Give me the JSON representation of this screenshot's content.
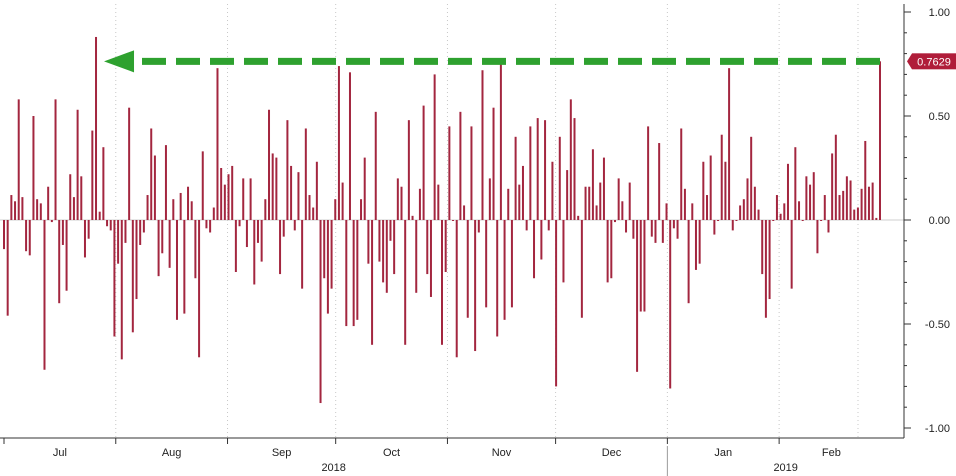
{
  "chart_data": {
    "type": "bar",
    "title": "",
    "xlabel": "",
    "ylabel": "",
    "ylim": [
      -1.04,
      1.04
    ],
    "y_ticks": [
      -1.0,
      -0.5,
      0.0,
      0.5,
      1.0
    ],
    "y_tick_labels": [
      "-1.00",
      "-0.50",
      "0.00",
      "0.50",
      "1.00"
    ],
    "grid": "vertical dotted at month starts",
    "months": [
      {
        "label": "Jul",
        "start_day": 0
      },
      {
        "label": "Aug",
        "start_day": 31
      },
      {
        "label": "Sep",
        "start_day": 62
      },
      {
        "label": "Oct",
        "start_day": 92
      },
      {
        "label": "Nov",
        "start_day": 123
      },
      {
        "label": "Dec",
        "start_day": 153
      },
      {
        "label": "Jan",
        "start_day": 184
      },
      {
        "label": "Feb",
        "start_day": 215
      }
    ],
    "years": [
      {
        "label": "2018",
        "start_day": 0
      },
      {
        "label": "2019",
        "start_day": 184
      }
    ],
    "series": [
      {
        "values": [
          -0.14,
          -0.46,
          0.12,
          0.09,
          0.58,
          0.11,
          -0.15,
          -0.17,
          0.5,
          0.1,
          0.08,
          -0.72,
          0.16,
          -0.01,
          0.58,
          -0.4,
          -0.12,
          -0.34,
          0.22,
          0.11,
          0.53,
          0.21,
          -0.18,
          -0.09,
          0.43,
          0.88,
          0.04,
          0.35,
          -0.03,
          -0.05,
          -0.56,
          -0.21,
          -0.67,
          -0.11,
          0.54,
          -0.54,
          -0.38,
          -0.12,
          -0.06,
          0.12,
          0.44,
          0.31,
          -0.27,
          -0.16,
          0.36,
          -0.23,
          0.1,
          -0.48,
          0.13,
          -0.45,
          0.16,
          0.09,
          -0.28,
          -0.66,
          0.33,
          -0.04,
          -0.06,
          0.06,
          0.73,
          0.25,
          0.17,
          0.22,
          0.26,
          -0.25,
          -0.03,
          0.2,
          -0.13,
          0.2,
          -0.31,
          -0.11,
          -0.2,
          0.1,
          0.53,
          0.32,
          0.3,
          -0.26,
          -0.08,
          0.48,
          0.26,
          -0.05,
          0.23,
          -0.33,
          0.44,
          0.12,
          0.06,
          0.28,
          -0.88,
          -0.28,
          -0.45,
          -0.33,
          0.1,
          0.74,
          0.18,
          -0.51,
          0.71,
          -0.51,
          -0.48,
          0.1,
          0.3,
          -0.21,
          -0.6,
          0.52,
          -0.2,
          -0.3,
          -0.35,
          -0.1,
          -0.26,
          0.2,
          0.16,
          -0.6,
          0.48,
          0.02,
          -0.35,
          0.15,
          0.55,
          -0.26,
          -0.37,
          0.7,
          0.17,
          -0.6,
          -0.25,
          0.45,
          0.0,
          -0.66,
          0.52,
          0.07,
          -0.47,
          0.45,
          -0.63,
          -0.06,
          0.72,
          -0.42,
          0.2,
          0.54,
          -0.56,
          0.76,
          -0.48,
          0.15,
          -0.42,
          0.4,
          0.17,
          0.26,
          -0.05,
          0.45,
          -0.28,
          0.49,
          -0.19,
          0.48,
          -0.05,
          0.28,
          -0.8,
          0.4,
          -0.3,
          0.24,
          0.58,
          0.49,
          0.02,
          -0.47,
          0.16,
          0.16,
          0.34,
          0.07,
          0.18,
          0.3,
          -0.3,
          -0.28,
          -0.01,
          0.2,
          0.09,
          -0.06,
          0.18,
          -0.09,
          -0.73,
          -0.44,
          -0.44,
          0.45,
          -0.08,
          -0.11,
          0.37,
          -0.11,
          0.08,
          -0.81,
          -0.04,
          -0.09,
          0.44,
          0.15,
          -0.4,
          0.08,
          -0.24,
          -0.21,
          0.28,
          0.12,
          0.31,
          -0.07,
          0.0,
          0.41,
          0.28,
          0.73,
          -0.05,
          0.0,
          0.07,
          0.1,
          0.2,
          0.4,
          0.16,
          0.05,
          -0.26,
          -0.47,
          -0.38,
          0.0,
          0.12,
          0.03,
          0.08,
          0.27,
          -0.33,
          0.35,
          0.09,
          0.0,
          0.21,
          0.17,
          0.23,
          -0.16,
          0.0,
          0.12,
          -0.06,
          0.32,
          0.41,
          0.12,
          0.14,
          0.21,
          0.19,
          0.05,
          0.06,
          0.15,
          0.38,
          0.16,
          0.18,
          0.01,
          0.7629
        ],
        "color": "#a3263f"
      }
    ],
    "last_value": 0.7629,
    "last_value_label": "0.7629",
    "last_value_badge_color": "#b01d3a",
    "annotation": {
      "type": "dashed-arrow",
      "color": "#2ea12f",
      "from_bar_index": -1,
      "to_bar_index": 25,
      "y": 0.7629
    },
    "bar_color": "#a3263f"
  }
}
